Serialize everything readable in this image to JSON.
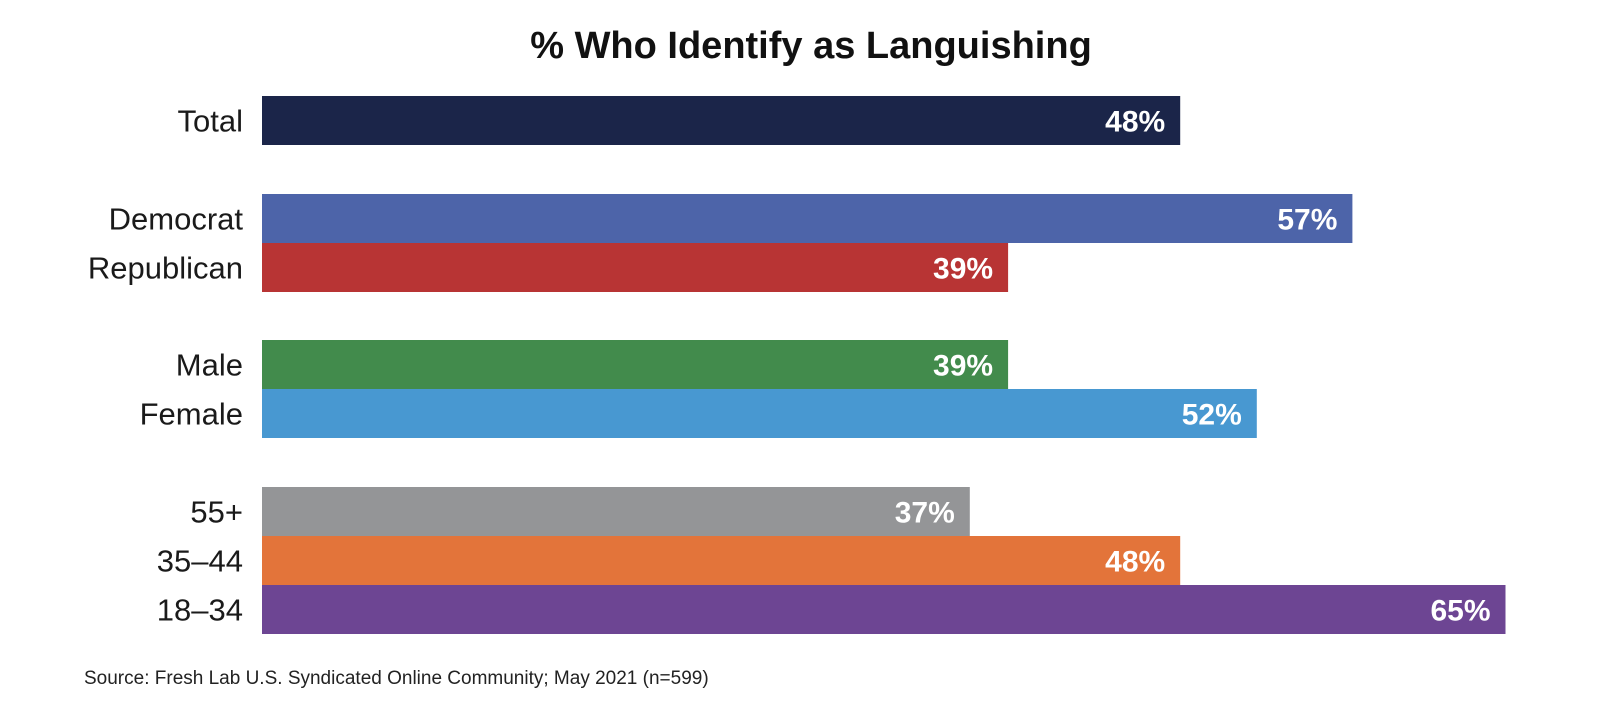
{
  "chart_data": {
    "type": "bar",
    "orientation": "horizontal",
    "title": "% Who Identify as Languishing",
    "categories": [
      "Total",
      "Democrat",
      "Republican",
      "Male",
      "Female",
      "55+",
      "35–44",
      "18–34"
    ],
    "values": [
      48,
      57,
      39,
      39,
      52,
      37,
      48,
      65
    ],
    "value_labels": [
      "48%",
      "57%",
      "39%",
      "39%",
      "52%",
      "37%",
      "48%",
      "65%"
    ],
    "colors": [
      "#1b2549",
      "#4d64a9",
      "#b83434",
      "#428b4c",
      "#4898d1",
      "#949597",
      "#e3743a",
      "#6d4593"
    ],
    "groups": [
      [
        0
      ],
      [
        1,
        2
      ],
      [
        3,
        4
      ],
      [
        5,
        6,
        7
      ]
    ],
    "xlim": [
      0,
      100
    ],
    "grid": false,
    "legend": false,
    "xlabel": "",
    "ylabel": ""
  },
  "source": "Source: Fresh Lab U.S. Syndicated Online Community; May 2021 (n=599)"
}
